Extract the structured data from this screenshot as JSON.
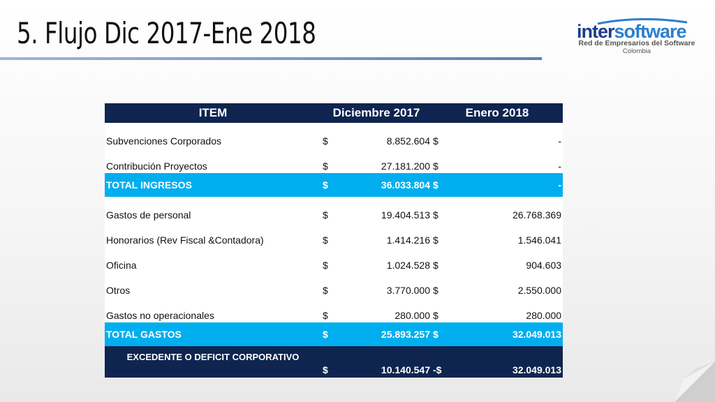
{
  "slide": {
    "title": "5. Flujo Dic 2017-Ene 2018"
  },
  "logo": {
    "name_part1": "inter",
    "name_part2": "software",
    "tagline": "Red de Empresarios del Software",
    "country": "Colombia"
  },
  "table": {
    "headers": {
      "item": "ITEM",
      "col1": "Diciembre 2017",
      "col2": "Enero 2018"
    },
    "rows": [
      {
        "item": "Subvenciones Corporados",
        "cur1": "$",
        "v1": "8.852.604",
        "cur2": "$",
        "v2": "-"
      },
      {
        "item": "Contribución Proyectos",
        "cur1": "$",
        "v1": "27.181.200",
        "cur2": "$",
        "v2": "-"
      },
      {
        "item": "TOTAL INGRESOS",
        "cur1": "$",
        "v1": "36.033.804",
        "cur2": "$",
        "v2": "-"
      },
      {
        "item": "Gastos de personal",
        "cur1": "$",
        "v1": "19.404.513",
        "cur2": "$",
        "v2": "26.768.369"
      },
      {
        "item": "Honorarios (Rev Fiscal &Contadora)",
        "cur1": "$",
        "v1": "1.414.216",
        "cur2": "$",
        "v2": "1.546.041"
      },
      {
        "item": "Oficina",
        "cur1": "$",
        "v1": "1.024.528",
        "cur2": "$",
        "v2": "904.603"
      },
      {
        "item": "Otros",
        "cur1": "$",
        "v1": "3.770.000",
        "cur2": "$",
        "v2": "2.550.000"
      },
      {
        "item": "Gastos no operacionales",
        "cur1": "$",
        "v1": "280.000",
        "cur2": "$",
        "v2": "280.000"
      },
      {
        "item": "TOTAL GASTOS",
        "cur1": "$",
        "v1": "25.893.257",
        "cur2": "$",
        "v2": "32.049.013"
      },
      {
        "item": "EXCEDENTE O DEFICIT CORPORATIVO",
        "cur1": "$",
        "v1": "10.140.547",
        "cur2": "-$",
        "v2": "32.049.013"
      }
    ]
  },
  "colors": {
    "header_bg": "#0f2550",
    "total_bg": "#00aeef",
    "negative": "#ff2b2b"
  }
}
